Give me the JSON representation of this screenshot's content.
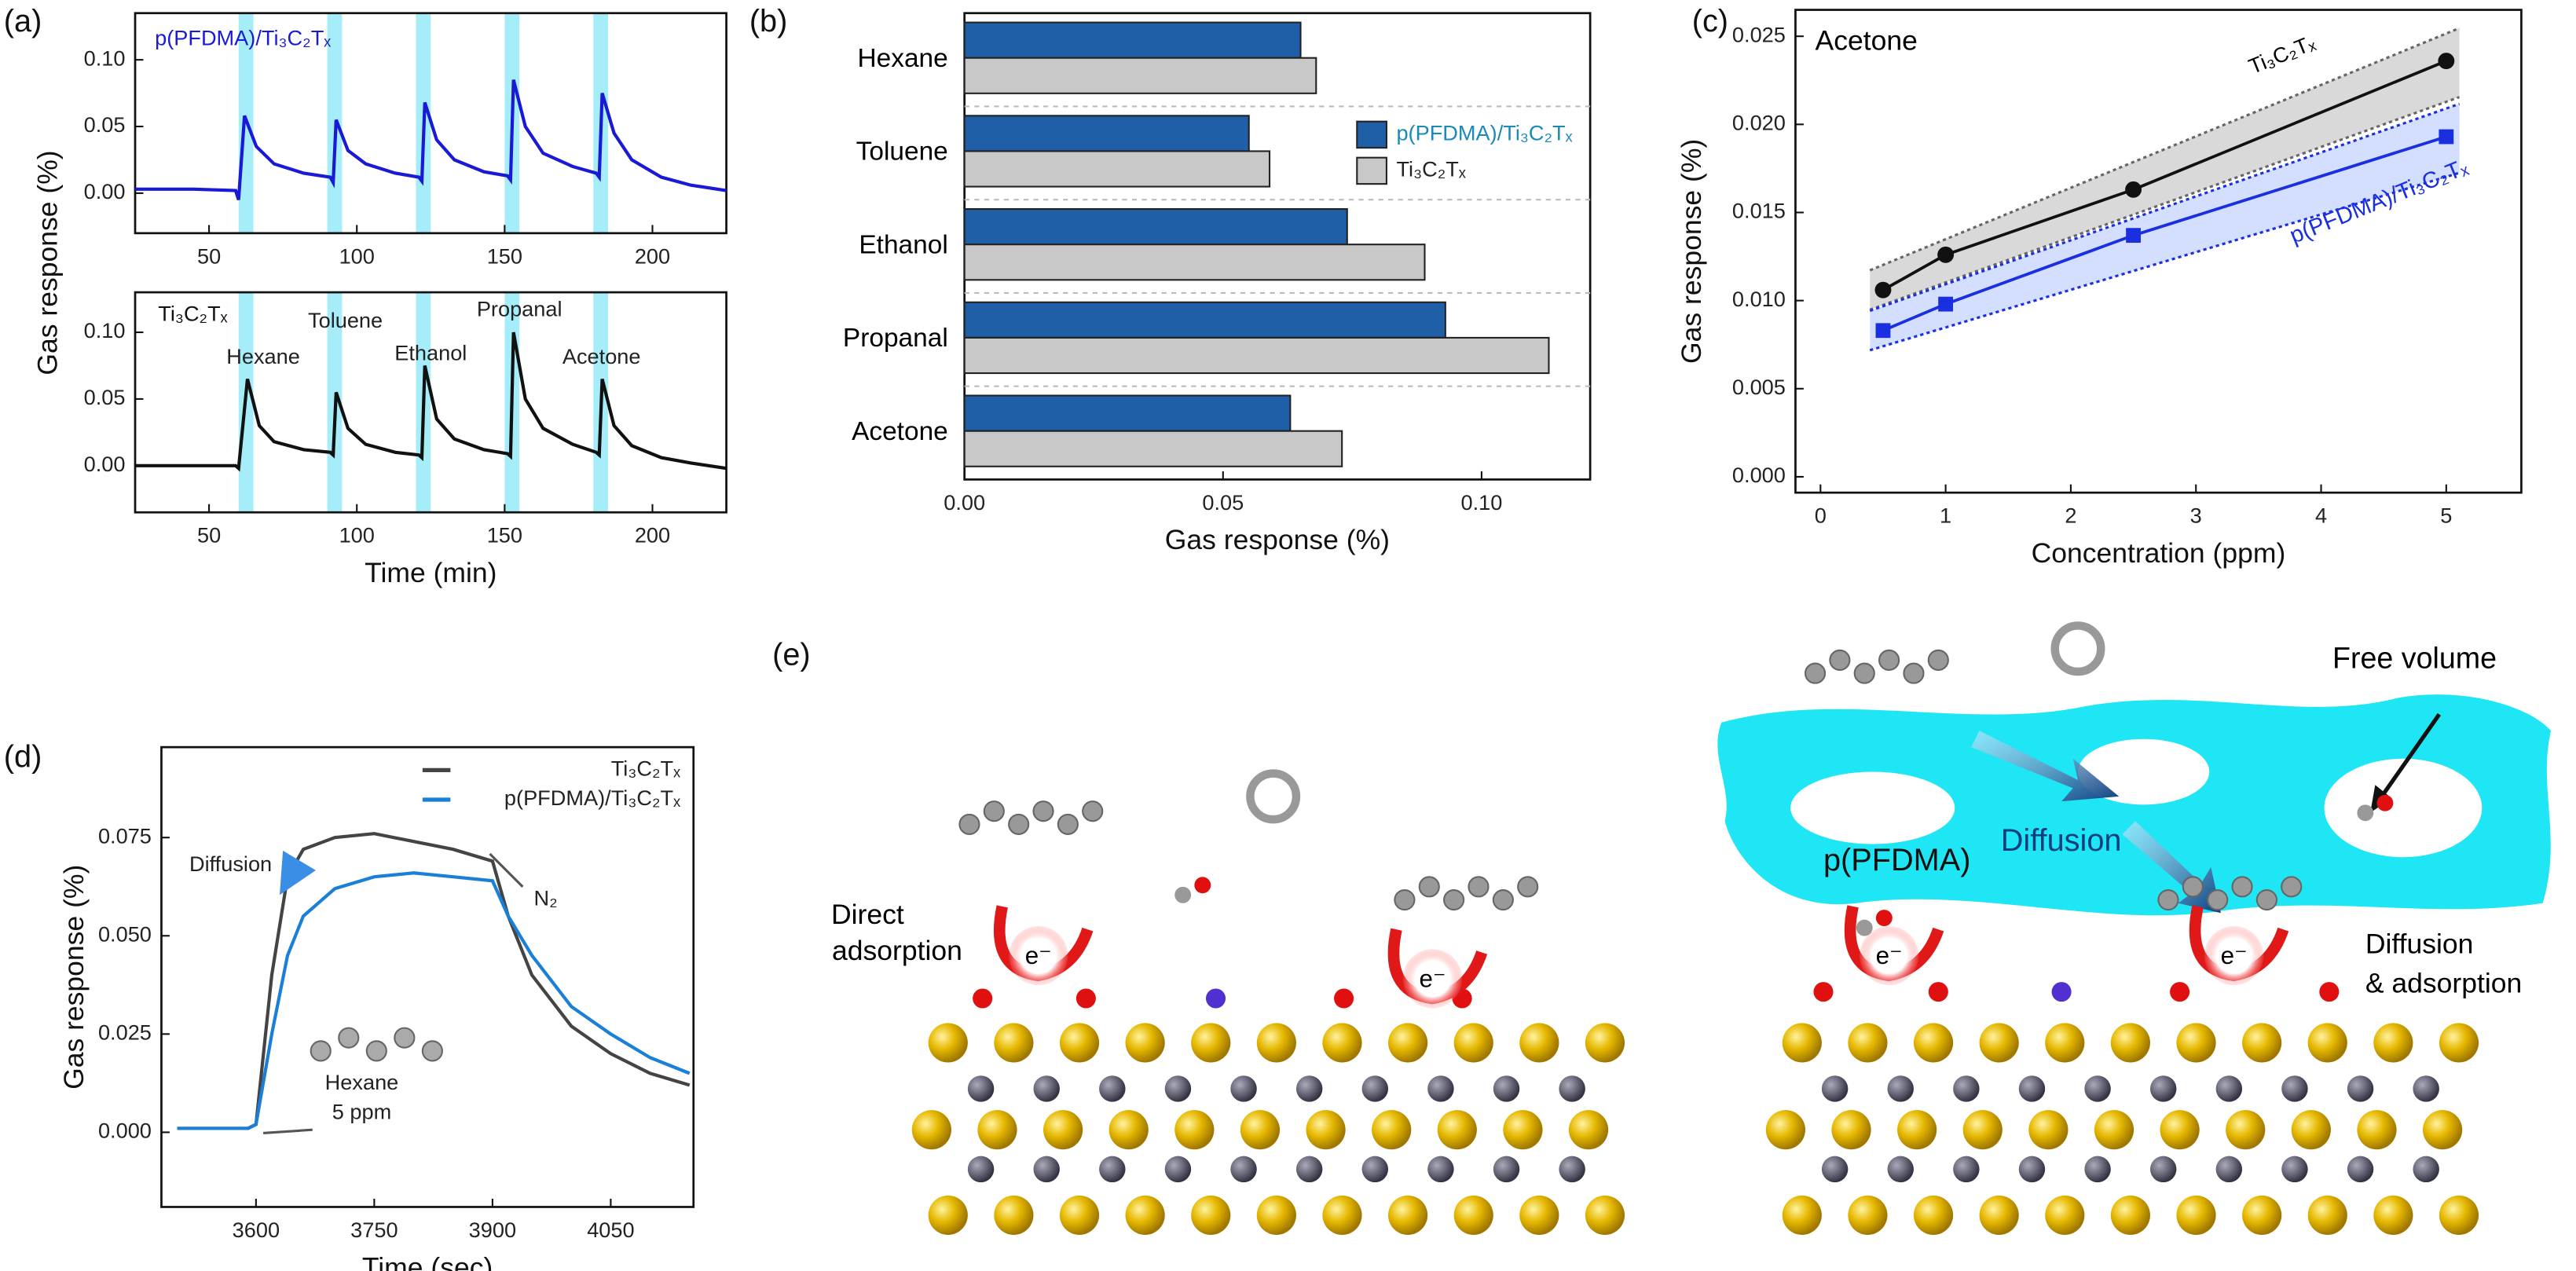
{
  "chart_data": [
    {
      "type": "line",
      "panel_label": "(a)",
      "x": [
        25,
        45,
        59,
        60,
        62,
        66,
        72,
        82,
        91,
        92,
        93,
        97,
        103,
        113,
        121,
        122,
        123,
        127,
        133,
        143,
        151,
        152,
        153,
        157,
        163,
        173,
        181,
        182,
        183,
        187,
        193,
        203,
        213,
        225
      ],
      "xlim": [
        25,
        225
      ],
      "xticks": [
        50,
        100,
        150,
        200
      ],
      "ylim": [
        -0.03,
        0.135
      ],
      "yticks": [
        {
          "value": 0,
          "label": "0.00"
        },
        0.05,
        {
          "value": 0.1,
          "label": "0.10"
        }
      ],
      "shaded": [
        [
          60,
          65
        ],
        [
          90,
          95
        ],
        [
          120,
          125
        ],
        [
          150,
          155
        ],
        [
          180,
          185
        ]
      ],
      "series": [
        {
          "name": "p(PFDMA)/Ti₃C₂Tₓ",
          "color": "#1a1ad6",
          "values": [
            0.003,
            0.003,
            0.002,
            -0.005,
            0.058,
            0.035,
            0.022,
            0.015,
            0.012,
            0.008,
            0.055,
            0.032,
            0.022,
            0.015,
            0.012,
            0.009,
            0.068,
            0.04,
            0.025,
            0.016,
            0.013,
            0.01,
            0.085,
            0.05,
            0.03,
            0.02,
            0.015,
            0.012,
            0.075,
            0.045,
            0.025,
            0.012,
            0.006,
            0.002
          ]
        }
      ]
    },
    {
      "type": "line",
      "x": [
        25,
        45,
        59,
        60,
        63,
        67,
        72,
        82,
        91,
        92,
        93,
        97,
        103,
        113,
        121,
        122,
        123,
        127,
        133,
        143,
        151,
        152,
        153,
        157,
        163,
        173,
        181,
        182,
        183,
        187,
        193,
        203,
        213,
        225
      ],
      "xlim": [
        25,
        225
      ],
      "xticks": [
        50,
        100,
        150,
        200
      ],
      "ylim": [
        -0.035,
        0.13
      ],
      "yticks": [
        {
          "value": 0,
          "label": "0.00"
        },
        0.05,
        {
          "value": 0.1,
          "label": "0.10"
        }
      ],
      "xlabel": "Time (min)",
      "ylabel": "Gas response (%)",
      "shaded": [
        [
          60,
          65
        ],
        [
          90,
          95
        ],
        [
          120,
          125
        ],
        [
          150,
          155
        ],
        [
          180,
          185
        ]
      ],
      "annotations": [
        "Hexane",
        "Toluene",
        "Ethanol",
        "Propanal",
        "Acetone"
      ],
      "series": [
        {
          "name": "Ti₃C₂Tₓ",
          "color": "#111111",
          "values": [
            0.0,
            0.0,
            0.0,
            -0.002,
            0.065,
            0.03,
            0.018,
            0.012,
            0.01,
            0.008,
            0.055,
            0.028,
            0.016,
            0.01,
            0.008,
            0.006,
            0.075,
            0.035,
            0.02,
            0.012,
            0.009,
            0.007,
            0.1,
            0.05,
            0.028,
            0.016,
            0.01,
            0.008,
            0.065,
            0.03,
            0.015,
            0.006,
            0.002,
            -0.002
          ]
        }
      ]
    },
    {
      "type": "bar",
      "orientation": "horizontal",
      "panel_label": "(b)",
      "categories": [
        "Hexane",
        "Toluene",
        "Ethanol",
        "Propanal",
        "Acetone"
      ],
      "xlim": [
        0,
        0.121
      ],
      "xticks": [
        {
          "value": 0,
          "label": "0.00"
        },
        0.05,
        {
          "value": 0.1,
          "label": "0.10"
        }
      ],
      "xlabel": "Gas response (%)",
      "series": [
        {
          "name": "p(PFDMA)/Ti₃C₂Tₓ",
          "color": "#1f5fa8",
          "values": [
            0.065,
            0.055,
            0.074,
            0.093,
            0.063
          ]
        },
        {
          "name": "Ti₃C₂Tₓ",
          "color": "#c8c8c8",
          "values": [
            0.068,
            0.059,
            0.089,
            0.113,
            0.073
          ]
        }
      ]
    },
    {
      "type": "line",
      "panel_label": "(c)",
      "title": "Acetone",
      "x": [
        0.5,
        1,
        2.5,
        5
      ],
      "xlim": [
        -0.2,
        5.6
      ],
      "xticks": [
        0,
        1,
        2,
        3,
        4,
        5
      ],
      "ylim": [
        -0.0009,
        0.0265
      ],
      "yticks": [
        {
          "value": 0,
          "label": "0.000"
        },
        {
          "value": 0.005,
          "label": "0.005"
        },
        {
          "value": 0.01,
          "label": "0.010"
        },
        {
          "value": 0.015,
          "label": "0.015"
        },
        {
          "value": 0.02,
          "label": "0.020"
        },
        {
          "value": 0.025,
          "label": "0.025"
        }
      ],
      "xlabel": "Concentration (ppm)",
      "ylabel": "Gas response (%)",
      "series": [
        {
          "name": "Ti₃C₂Tₓ",
          "color": "#111111",
          "marker": "circle",
          "values": [
            0.0106,
            0.0126,
            0.0163,
            0.0236
          ]
        },
        {
          "name": "p(PFDMA)/Ti₃C₂Tₓ",
          "color": "#1a2fe0",
          "marker": "square",
          "values": [
            0.0083,
            0.0098,
            0.0137,
            0.0193
          ]
        }
      ]
    },
    {
      "type": "line",
      "panel_label": "(d)",
      "x": [
        3500,
        3590,
        3600,
        3620,
        3640,
        3660,
        3700,
        3750,
        3800,
        3850,
        3900,
        3920,
        3950,
        4000,
        4050,
        4100,
        4150
      ],
      "xlim": [
        3480,
        4155
      ],
      "xticks": [
        3600,
        3750,
        3900,
        4050
      ],
      "ylim": [
        -0.019,
        0.098
      ],
      "yticks": [
        {
          "value": 0,
          "label": "0.000"
        },
        {
          "value": 0.025,
          "label": "0.025"
        },
        {
          "value": 0.05,
          "label": "0.050"
        },
        {
          "value": 0.075,
          "label": "0.075"
        }
      ],
      "xlabel": "Time (sec)",
      "ylabel": "Gas response (%)",
      "legend": "upper right",
      "annotations": [
        "Diffusion",
        "N₂",
        "Hexane",
        "5 ppm"
      ],
      "series": [
        {
          "name": "Ti₃C₂Tₓ",
          "color": "#444444",
          "values": [
            0.001,
            0.001,
            0.002,
            0.04,
            0.065,
            0.072,
            0.075,
            0.076,
            0.074,
            0.072,
            0.069,
            0.055,
            0.04,
            0.027,
            0.02,
            0.015,
            0.012
          ]
        },
        {
          "name": "p(PFDMA)/Ti₃C₂Tₓ",
          "color": "#1a7fd6",
          "values": [
            0.001,
            0.001,
            0.002,
            0.025,
            0.045,
            0.055,
            0.062,
            0.065,
            0.066,
            0.065,
            0.064,
            0.055,
            0.045,
            0.032,
            0.025,
            0.019,
            0.015
          ]
        }
      ]
    }
  ],
  "diagram": {
    "panel_label": "(e)",
    "direct": [
      "Direct",
      "adsorption"
    ],
    "electron": "e⁻",
    "free_volume": "Free volume",
    "polymer": "p(PFDMA)",
    "diffusion": "Diffusion",
    "diff_ads": [
      "Diffusion",
      "& adsorption"
    ]
  }
}
